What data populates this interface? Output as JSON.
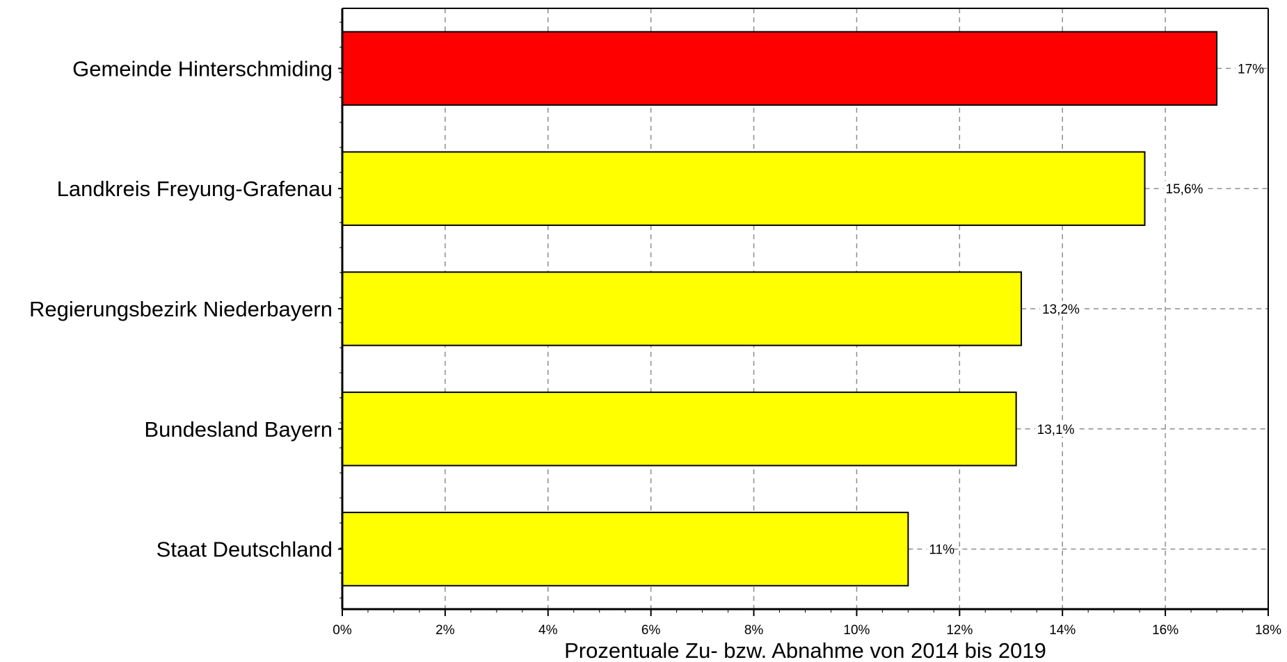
{
  "chart_data": {
    "type": "bar",
    "orientation": "horizontal",
    "categories": [
      "Gemeinde Hinterschmiding",
      "Landkreis Freyung-Grafenau",
      "Regierungsbezirk Niederbayern",
      "Bundesland Bayern",
      "Staat Deutschland"
    ],
    "values": [
      17,
      15.6,
      13.2,
      13.1,
      11
    ],
    "value_labels": [
      "17%",
      "15,6%",
      "13,2%",
      "13,1%",
      "11%"
    ],
    "bar_colors": [
      "#ff0000",
      "#ffff00",
      "#ffff00",
      "#ffff00",
      "#ffff00"
    ],
    "xlabel": "Prozentuale Zu- bzw. Abnahme von 2014 bis 2019",
    "ylabel": "",
    "xlim": [
      0,
      18
    ],
    "xticks": [
      0,
      2,
      4,
      6,
      8,
      10,
      12,
      14,
      16,
      18
    ],
    "xtick_labels": [
      "0%",
      "2%",
      "4%",
      "6%",
      "8%",
      "10%",
      "12%",
      "14%",
      "16%",
      "18%"
    ],
    "grid": true,
    "grid_style": "dashed",
    "legend": "none"
  }
}
